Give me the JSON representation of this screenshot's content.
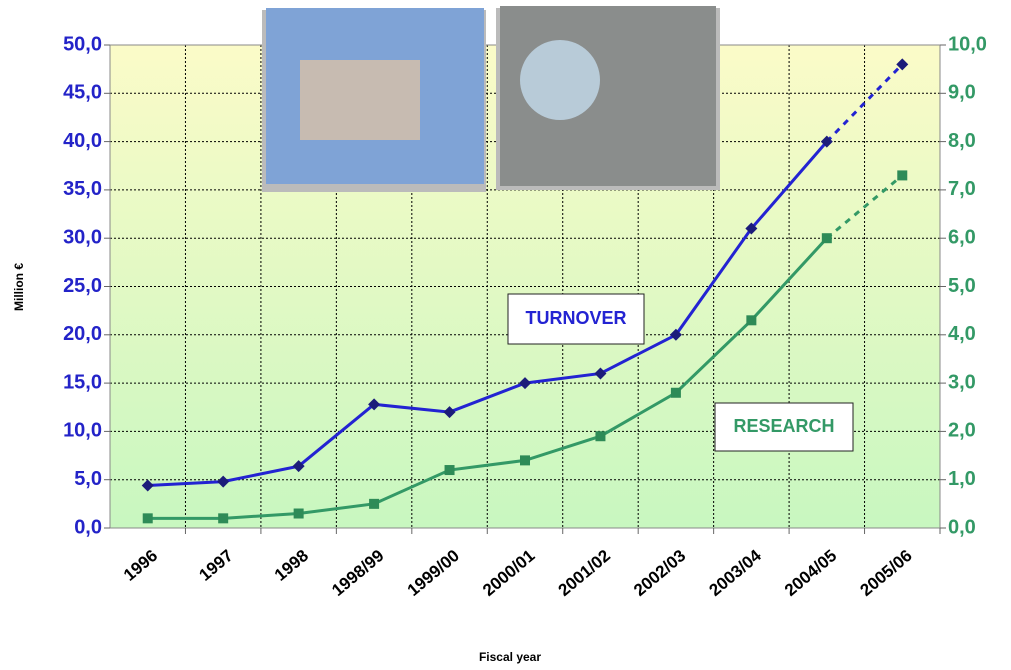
{
  "chart_data": {
    "type": "line",
    "y_label": "Million €",
    "x_label": "Fiscal year",
    "categories": [
      "1996",
      "1997",
      "1998",
      "1998/99",
      "1999/00",
      "2000/01",
      "2001/02",
      "2002/03",
      "2003/04",
      "2004/05",
      "2005/06"
    ],
    "series": [
      {
        "name": "TURNOVER",
        "color": "#2323d2",
        "marker_color": "#1c1c7a",
        "marker": "diamond",
        "dashed_last_segment": true,
        "values": [
          4.4,
          4.8,
          6.4,
          12.8,
          12.0,
          15.0,
          16.0,
          20.0,
          31.0,
          40.0,
          48.0
        ]
      },
      {
        "name": "RESEARCH",
        "color": "#339966",
        "marker_color": "#2e8b57",
        "marker": "square",
        "axis": "y2",
        "dashed_last_segment": true,
        "values": [
          0.2,
          0.2,
          0.3,
          0.5,
          1.2,
          1.4,
          1.9,
          2.8,
          4.3,
          6.0,
          7.3
        ]
      }
    ],
    "ylim": [
      0,
      50
    ],
    "yticks": [
      {
        "value": 0,
        "label": "0,0"
      },
      {
        "value": 5,
        "label": "5,0"
      },
      {
        "value": 10,
        "label": "10,0"
      },
      {
        "value": 15,
        "label": "15,0"
      },
      {
        "value": 20,
        "label": "20,0"
      },
      {
        "value": 25,
        "label": "25,0"
      },
      {
        "value": 30,
        "label": "30,0"
      },
      {
        "value": 35,
        "label": "35,0"
      },
      {
        "value": 40,
        "label": "40,0"
      },
      {
        "value": 45,
        "label": "45,0"
      },
      {
        "value": 50,
        "label": "50,0"
      }
    ],
    "y2lim": [
      0,
      10
    ],
    "y2ticks": [
      {
        "value": 0,
        "label": "0,0"
      },
      {
        "value": 1,
        "label": "1,0"
      },
      {
        "value": 2,
        "label": "2,0"
      },
      {
        "value": 3,
        "label": "3,0"
      },
      {
        "value": 4,
        "label": "4,0"
      },
      {
        "value": 5,
        "label": "5,0"
      },
      {
        "value": 6,
        "label": "6,0"
      },
      {
        "value": 7,
        "label": "7,0"
      },
      {
        "value": 8,
        "label": "8,0"
      },
      {
        "value": 9,
        "label": "9,0"
      },
      {
        "value": 10,
        "label": "10,0"
      }
    ],
    "grid": true
  }
}
